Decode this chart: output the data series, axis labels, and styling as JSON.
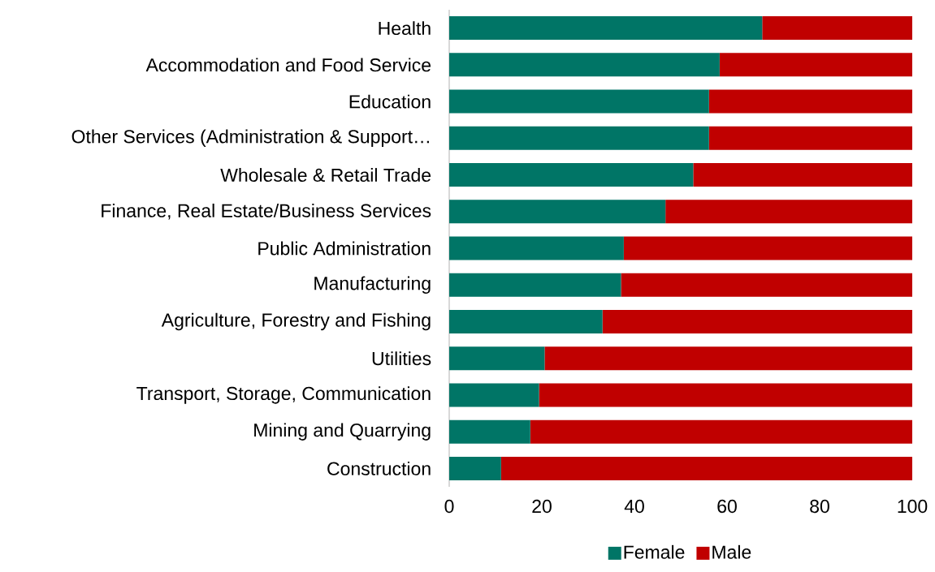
{
  "chart_data": {
    "type": "bar",
    "orientation": "horizontal",
    "stacked": true,
    "categories": [
      "Health",
      "Accommodation and Food Service",
      "Education",
      "Other Services (Administration & Support…",
      "Wholesale & Retail Trade",
      "Finance, Real Estate/Business Services",
      "Public Administration",
      "Manufacturing",
      "Agriculture, Forestry and Fishing",
      "Utilities",
      "Transport, Storage, Communication",
      "Mining and Quarrying",
      "Construction"
    ],
    "series": [
      {
        "name": "Female",
        "color": "#007566",
        "values": [
          67.6,
          58.4,
          56.1,
          56.1,
          52.7,
          46.7,
          37.7,
          37.1,
          33.1,
          20.6,
          19.4,
          17.5,
          11.2
        ]
      },
      {
        "name": "Male",
        "color": "#c00000",
        "values": [
          32.4,
          41.6,
          43.9,
          43.9,
          47.3,
          53.3,
          62.3,
          62.9,
          66.9,
          79.4,
          80.6,
          82.5,
          88.8
        ]
      }
    ],
    "xlim": [
      0,
      100
    ],
    "xticks": [
      0,
      20,
      40,
      60,
      80,
      100
    ],
    "legend": "bottom"
  }
}
